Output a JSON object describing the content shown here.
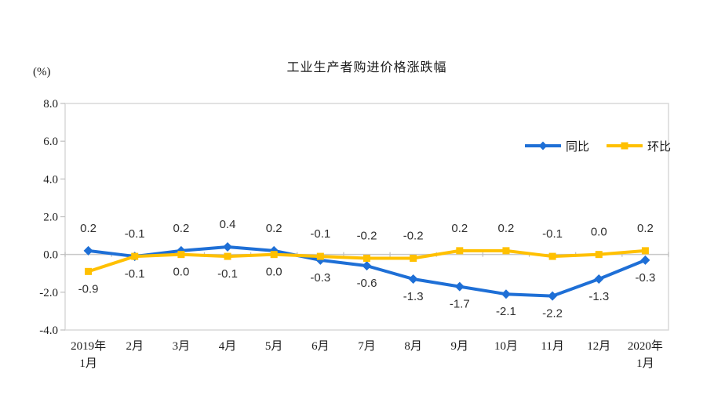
{
  "chart_data": {
    "type": "line",
    "title": "工业生产者购进价格涨跌幅",
    "ylabel": "(%)",
    "xlabel": "",
    "ylim": [
      -4.0,
      8.0
    ],
    "ytick_step": 2.0,
    "yticks": [
      8.0,
      6.0,
      4.0,
      2.0,
      0.0,
      -2.0,
      -4.0
    ],
    "grid": "zero-line only, light plot border, ticks at category boundaries",
    "legend_position": "upper right inside plot",
    "categories": [
      "2019年1月",
      "2月",
      "3月",
      "4月",
      "5月",
      "6月",
      "7月",
      "8月",
      "9月",
      "10月",
      "11月",
      "12月",
      "2020年1月"
    ],
    "category_lines": [
      [
        "2019年",
        "1月"
      ],
      [
        "2月"
      ],
      [
        "3月"
      ],
      [
        "4月"
      ],
      [
        "5月"
      ],
      [
        "6月"
      ],
      [
        "7月"
      ],
      [
        "8月"
      ],
      [
        "9月"
      ],
      [
        "10月"
      ],
      [
        "11月"
      ],
      [
        "12月"
      ],
      [
        "2020年",
        "1月"
      ]
    ],
    "series": [
      {
        "key": "yoy",
        "name": "同比",
        "color": "#1E6FD6",
        "marker": "diamond",
        "values": [
          0.2,
          -0.1,
          0.2,
          0.4,
          0.2,
          -0.3,
          -0.6,
          -1.3,
          -1.7,
          -2.1,
          -2.2,
          -1.3,
          -0.3
        ],
        "label_side": [
          "above",
          "above",
          "above",
          "above",
          "above",
          "below",
          "below",
          "below",
          "below",
          "below",
          "below",
          "below",
          "below"
        ]
      },
      {
        "key": "mom",
        "name": "环比",
        "color": "#FFC000",
        "marker": "square",
        "values": [
          -0.9,
          -0.1,
          0.0,
          -0.1,
          0.0,
          -0.1,
          -0.2,
          -0.2,
          0.2,
          0.2,
          -0.1,
          0.0,
          0.2
        ],
        "label_side": [
          "below",
          "below",
          "below",
          "below",
          "below",
          "above",
          "above",
          "above",
          "above",
          "above",
          "above",
          "above",
          "above"
        ]
      }
    ],
    "colors": {
      "border": "#D9D9D9",
      "zero_line": "#C9C9C9",
      "tick": "#BFBFBF",
      "text": "#1A1A1A",
      "data_label": "#303030"
    }
  }
}
